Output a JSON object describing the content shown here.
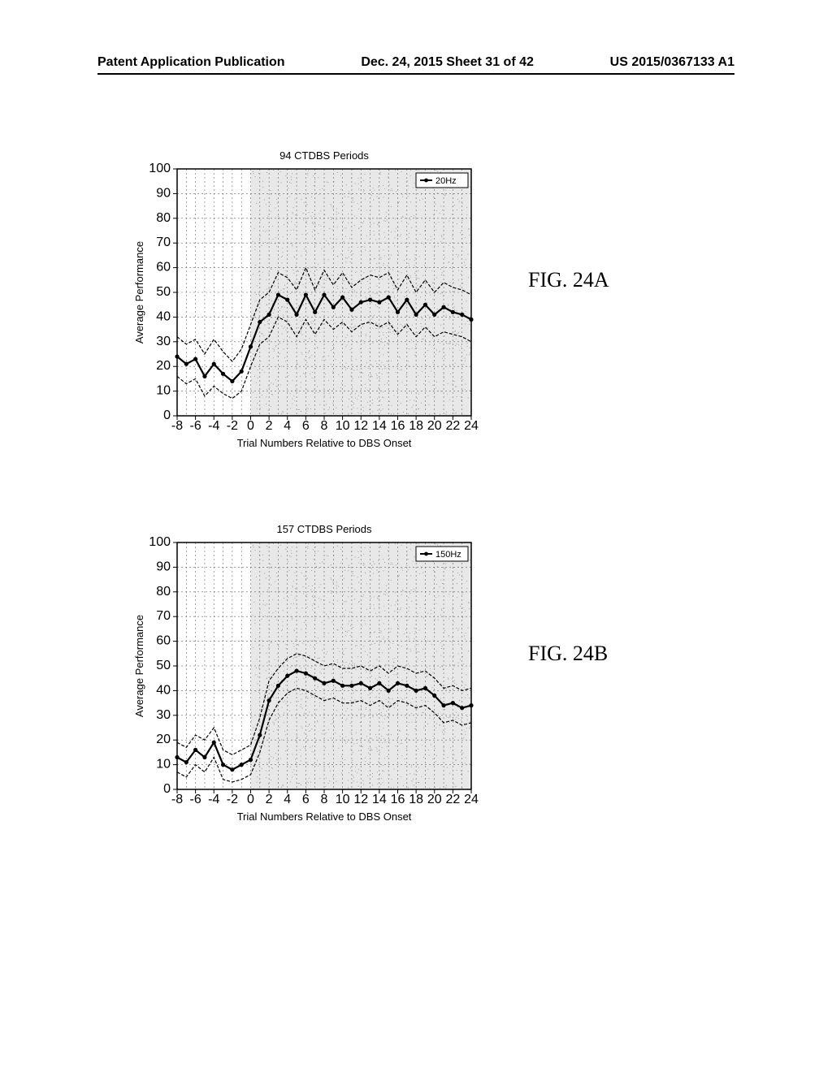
{
  "header": {
    "left": "Patent Application Publication",
    "center": "Dec. 24, 2015  Sheet 31 of 42",
    "right": "US 2015/0367133 A1"
  },
  "labels": {
    "figA": "FIG. 24A",
    "figB": "FIG. 24B"
  },
  "chartA": {
    "type": "line",
    "title": "94 CTDBS Periods",
    "xlabel": "Trial Numbers Relative to DBS Onset",
    "ylabel": "Average Performance",
    "legend": "20Hz",
    "xlim": [
      -8,
      24
    ],
    "ylim": [
      0,
      100
    ],
    "xticks": [
      -8,
      -6,
      -4,
      -2,
      0,
      2,
      4,
      6,
      8,
      10,
      12,
      14,
      16,
      18,
      20,
      22,
      24
    ],
    "yticks": [
      0,
      10,
      20,
      30,
      40,
      50,
      60,
      70,
      80,
      90,
      100
    ],
    "shade_start": 0,
    "shade_end": 24,
    "background_color": "#ffffff",
    "grid_color": "#666666",
    "line_color": "#000000",
    "marker_color": "#000000",
    "bound_dash": "4,2",
    "line_width": 2.2,
    "bound_width": 1.2,
    "marker_radius": 2.6,
    "x": [
      -8,
      -7,
      -6,
      -5,
      -4,
      -3,
      -2,
      -1,
      0,
      1,
      2,
      3,
      4,
      5,
      6,
      7,
      8,
      9,
      10,
      11,
      12,
      13,
      14,
      15,
      16,
      17,
      18,
      19,
      20,
      21,
      22,
      23,
      24
    ],
    "main": [
      24,
      21,
      23,
      16,
      21,
      17,
      14,
      18,
      28,
      38,
      41,
      49,
      47,
      41,
      49,
      42,
      49,
      44,
      48,
      43,
      46,
      47,
      46,
      48,
      42,
      47,
      41,
      45,
      41,
      44,
      42,
      41,
      39
    ],
    "upper": [
      32,
      29,
      31,
      25,
      31,
      26,
      22,
      27,
      37,
      47,
      50,
      58,
      56,
      51,
      60,
      51,
      59,
      53,
      58,
      52,
      55,
      57,
      56,
      58,
      51,
      57,
      50,
      55,
      50,
      54,
      52,
      51,
      49
    ],
    "lower": [
      16,
      13,
      15,
      8,
      12,
      9,
      7,
      10,
      20,
      29,
      32,
      40,
      38,
      32,
      39,
      33,
      39,
      35,
      38,
      34,
      37,
      38,
      36,
      38,
      33,
      37,
      32,
      36,
      32,
      34,
      33,
      32,
      30
    ]
  },
  "chartB": {
    "type": "line",
    "title": "157 CTDBS Periods",
    "xlabel": "Trial Numbers Relative to DBS Onset",
    "ylabel": "Average Performance",
    "legend": "150Hz",
    "xlim": [
      -8,
      24
    ],
    "ylim": [
      0,
      100
    ],
    "xticks": [
      -8,
      -6,
      -4,
      -2,
      0,
      2,
      4,
      6,
      8,
      10,
      12,
      14,
      16,
      18,
      20,
      22,
      24
    ],
    "yticks": [
      0,
      10,
      20,
      30,
      40,
      50,
      60,
      70,
      80,
      90,
      100
    ],
    "shade_start": 0,
    "shade_end": 24,
    "background_color": "#ffffff",
    "grid_color": "#666666",
    "line_color": "#000000",
    "marker_color": "#000000",
    "bound_dash": "4,2",
    "line_width": 2.2,
    "bound_width": 1.2,
    "marker_radius": 2.6,
    "x": [
      -8,
      -7,
      -6,
      -5,
      -4,
      -3,
      -2,
      -1,
      0,
      1,
      2,
      3,
      4,
      5,
      6,
      7,
      8,
      9,
      10,
      11,
      12,
      13,
      14,
      15,
      16,
      17,
      18,
      19,
      20,
      21,
      22,
      23,
      24
    ],
    "main": [
      13,
      11,
      16,
      13,
      19,
      10,
      8,
      10,
      12,
      22,
      36,
      42,
      46,
      48,
      47,
      45,
      43,
      44,
      42,
      42,
      43,
      41,
      43,
      40,
      43,
      42,
      40,
      41,
      38,
      34,
      35,
      33,
      34
    ],
    "upper": [
      19,
      17,
      22,
      20,
      25,
      16,
      14,
      16,
      18,
      29,
      44,
      49,
      53,
      55,
      54,
      52,
      50,
      51,
      49,
      49,
      50,
      48,
      50,
      47,
      50,
      49,
      47,
      48,
      45,
      41,
      42,
      40,
      41
    ],
    "lower": [
      7,
      5,
      10,
      7,
      13,
      4,
      3,
      4,
      6,
      15,
      28,
      35,
      39,
      41,
      40,
      38,
      36,
      37,
      35,
      35,
      36,
      34,
      36,
      33,
      36,
      35,
      33,
      34,
      31,
      27,
      28,
      26,
      27
    ]
  }
}
